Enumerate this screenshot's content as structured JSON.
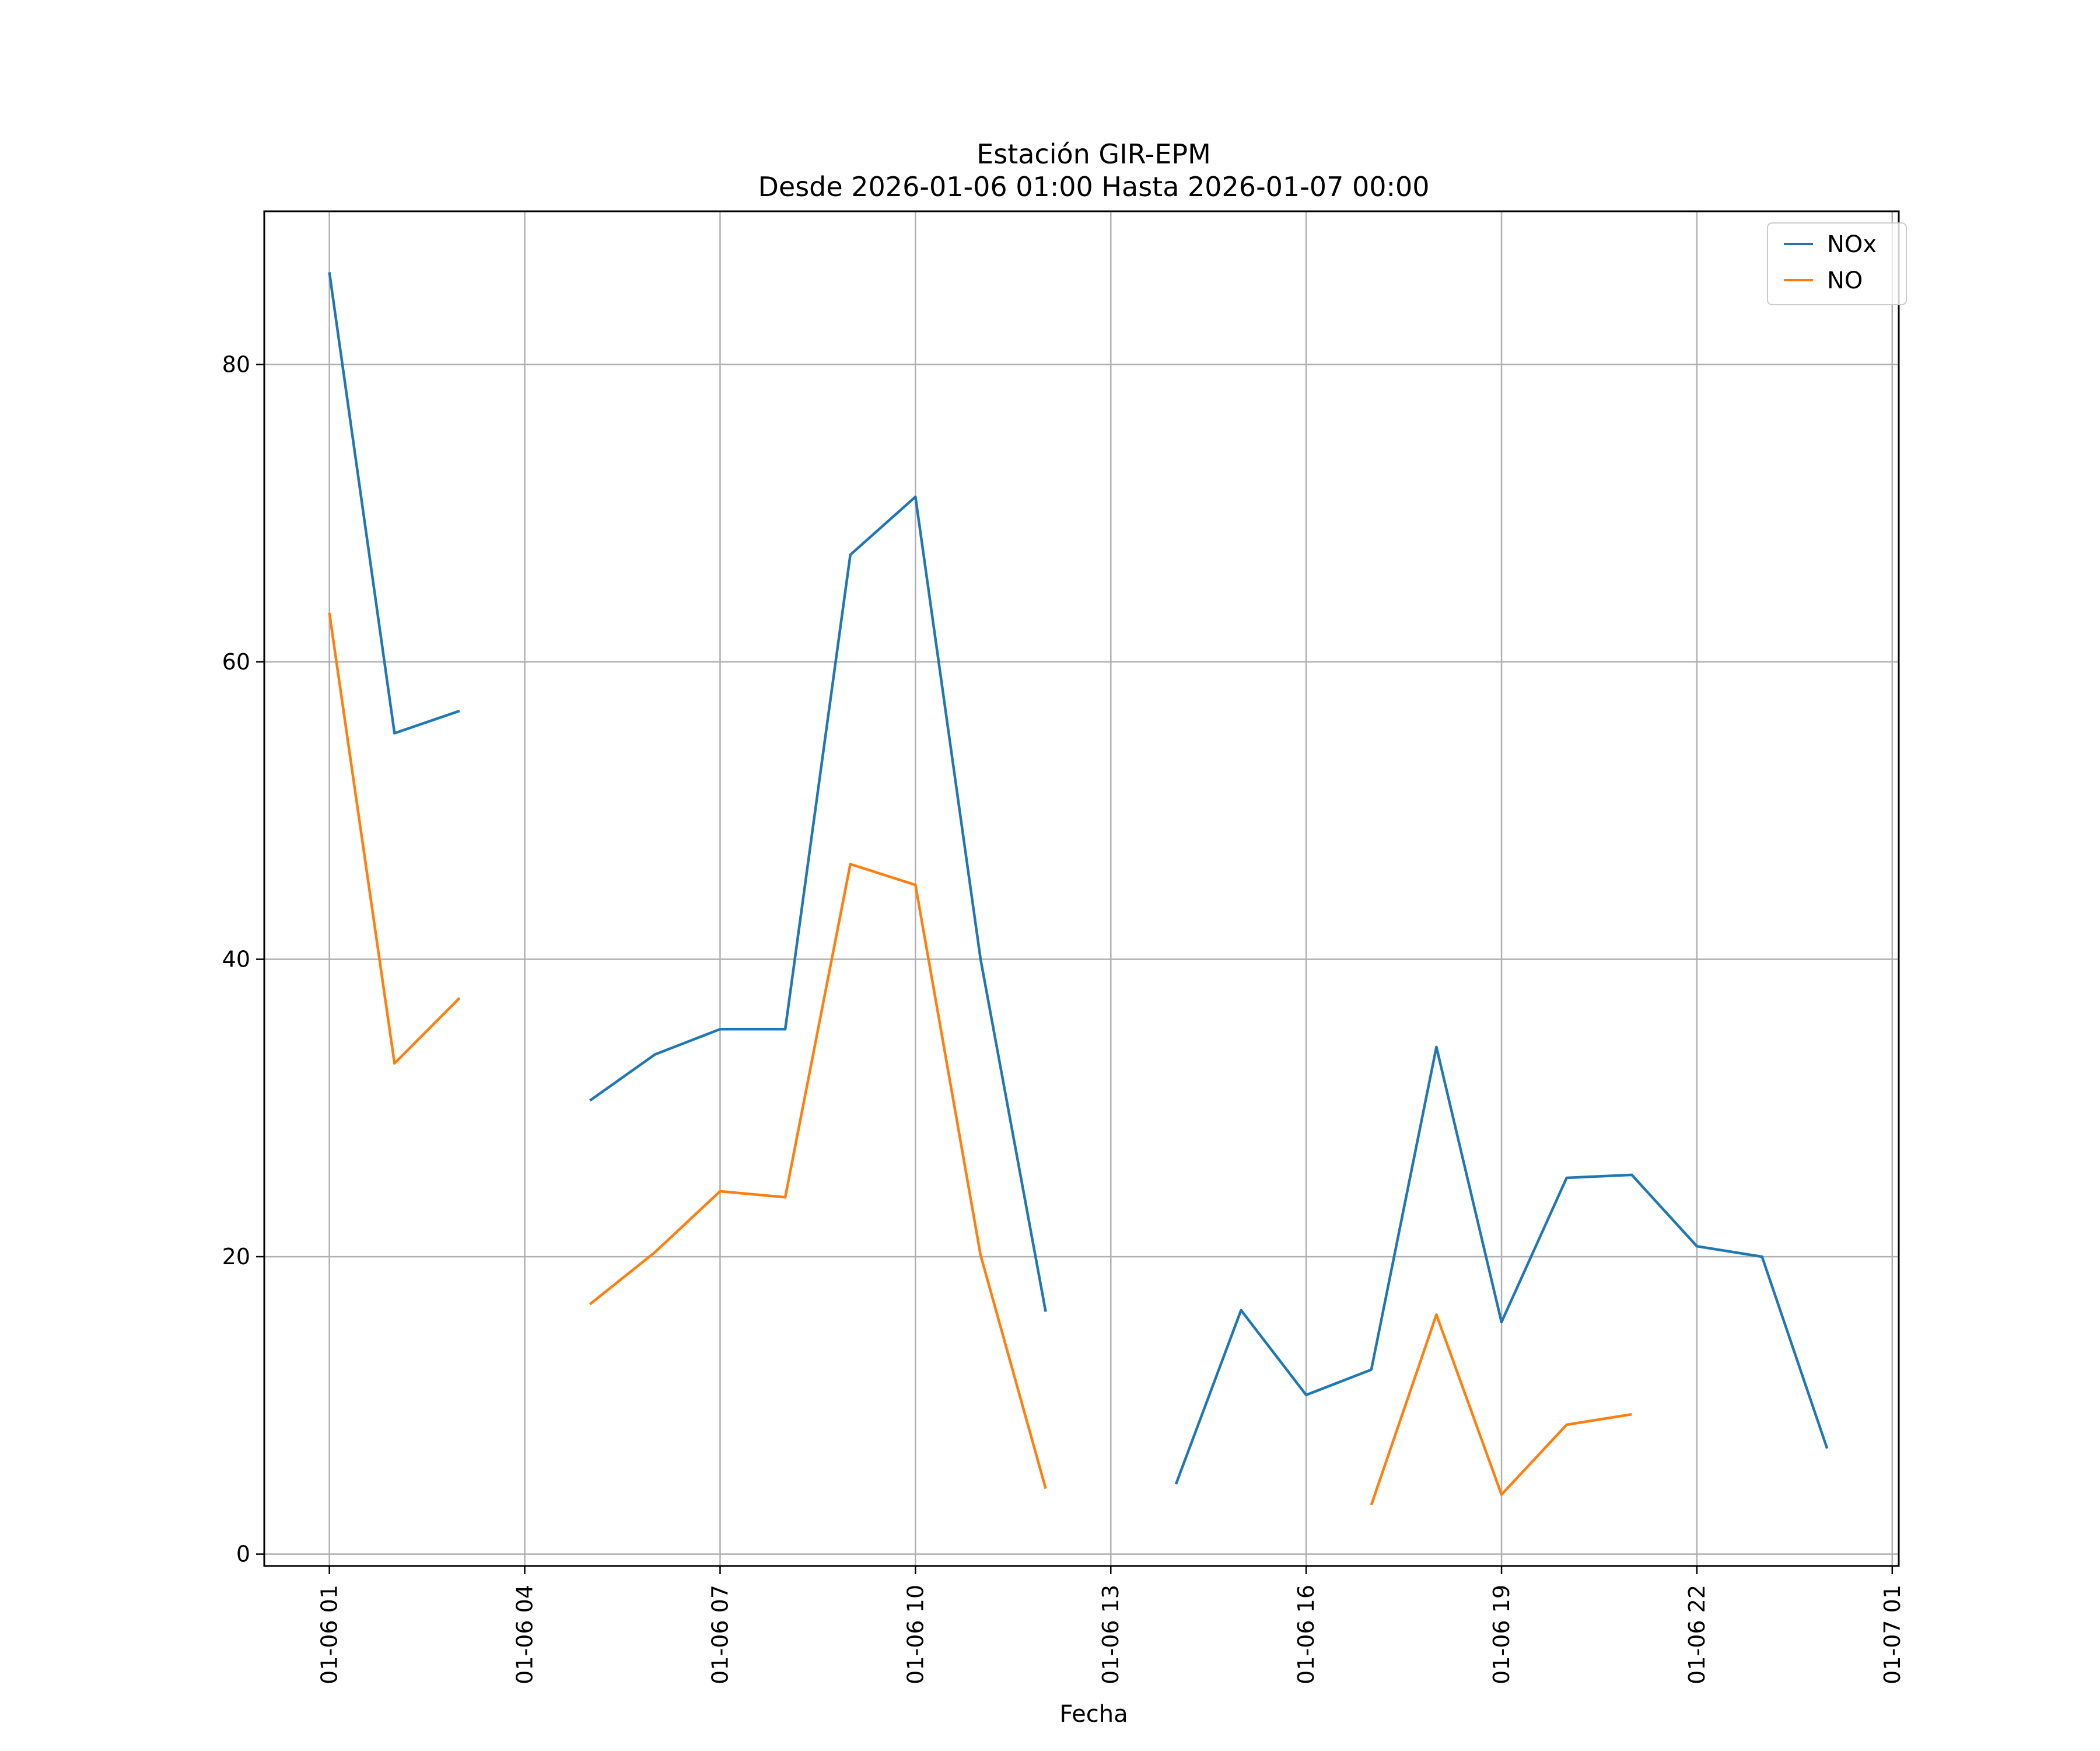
{
  "chart_data": {
    "type": "line",
    "title": "Estación GIR-EPM",
    "subtitle": "Desde 2026-01-06 01:00 Hasta 2026-01-07 00:00",
    "xlabel": "Fecha",
    "ylabel": "",
    "x": [
      "2026-01-06 01:00",
      "2026-01-06 02:00",
      "2026-01-06 03:00",
      "2026-01-06 04:00",
      "2026-01-06 05:00",
      "2026-01-06 06:00",
      "2026-01-06 07:00",
      "2026-01-06 08:00",
      "2026-01-06 09:00",
      "2026-01-06 10:00",
      "2026-01-06 11:00",
      "2026-01-06 12:00",
      "2026-01-06 13:00",
      "2026-01-06 14:00",
      "2026-01-06 15:00",
      "2026-01-06 16:00",
      "2026-01-06 17:00",
      "2026-01-06 18:00",
      "2026-01-06 19:00",
      "2026-01-06 20:00",
      "2026-01-06 21:00",
      "2026-01-06 22:00",
      "2026-01-06 23:00",
      "2026-01-07 00:00"
    ],
    "xlim": [
      "2026-01-06 00:00",
      "2026-01-07 01:06"
    ],
    "x_ticks": [
      "01-06 01",
      "01-06 04",
      "01-06 07",
      "01-06 10",
      "01-06 13",
      "01-06 16",
      "01-06 19",
      "01-06 22",
      "01-07 01"
    ],
    "ylim": [
      -0.8,
      90.3
    ],
    "y_ticks": [
      "0",
      "20",
      "40",
      "60",
      "80"
    ],
    "grid": true,
    "legend_position": "top-right",
    "series": [
      {
        "name": "NOx",
        "color": "#1f77b4",
        "values": [
          86.2,
          55.2,
          56.7,
          null,
          30.5,
          33.6,
          35.3,
          35.3,
          67.2,
          71.1,
          40.0,
          16.3,
          null,
          4.7,
          16.4,
          10.7,
          12.4,
          34.1,
          15.6,
          25.3,
          25.5,
          20.7,
          20.0,
          7.1
        ]
      },
      {
        "name": "NO",
        "color": "#ff7f0e",
        "values": [
          63.3,
          33.0,
          37.4,
          null,
          16.8,
          20.3,
          24.4,
          24.0,
          46.4,
          45.0,
          20.1,
          4.4,
          null,
          null,
          null,
          null,
          3.3,
          16.1,
          4.0,
          8.7,
          9.4,
          null,
          null,
          null
        ]
      }
    ]
  }
}
